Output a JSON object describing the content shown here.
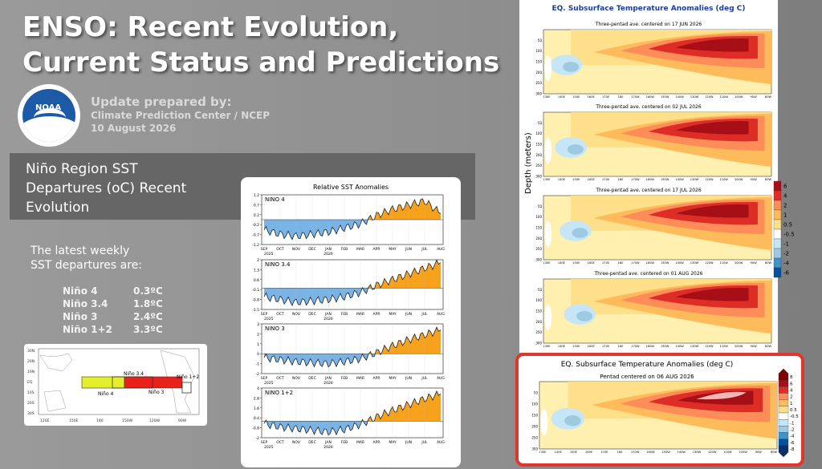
{
  "title": {
    "line1": "ENSO: Recent Evolution,",
    "line2": "Current Status and Predictions"
  },
  "update": {
    "label": "Update prepared by:",
    "org": "Climate Prediction Center / NCEP",
    "date": "10 August 2026"
  },
  "logo": {
    "text": "NOAA"
  },
  "section": {
    "line1": "Niño Region SST",
    "line2": "Departures (oC) Recent",
    "line3": "Evolution"
  },
  "latest": {
    "heading1": "The latest weekly",
    "heading2": "SST departures are:",
    "rows": [
      {
        "name": "Niño 4",
        "value": "0.3ºC"
      },
      {
        "name": "Niño 3.4",
        "value": "1.8ºC"
      },
      {
        "name": "Niño 3",
        "value": "2.4ºC"
      },
      {
        "name": "Niño 1+2",
        "value": "3.3ºC"
      }
    ]
  },
  "map": {
    "labels": [
      "Niño 3.4",
      "Niño 4",
      "Niño 3",
      "Niño 1+2"
    ],
    "lat_labels": [
      "30N",
      "20N",
      "10N",
      "EQ",
      "10S",
      "20S",
      "30S"
    ],
    "lon_labels": [
      "120E",
      "150E",
      "180",
      "150W",
      "120W",
      "90W"
    ]
  },
  "sst_chart": {
    "title": "Relative SST Anomalies",
    "months": [
      "SEP",
      "OCT",
      "NOV",
      "DEC",
      "JAN",
      "FEB",
      "MAR",
      "APR",
      "MAY",
      "JUN",
      "JUL",
      "AUG"
    ],
    "year1": "2025",
    "year2": "2026"
  },
  "chart_data": [
    {
      "type": "area",
      "title": "NINO 4",
      "ylim": [
        -1.2,
        1.2
      ],
      "x": [
        "SEP",
        "OCT",
        "NOV",
        "DEC",
        "JAN",
        "FEB",
        "MAR",
        "APR",
        "MAY",
        "JUN",
        "JUL",
        "AUG"
      ],
      "y": [
        -0.5,
        -0.7,
        -0.8,
        -0.7,
        -0.6,
        -0.4,
        -0.2,
        0.2,
        0.5,
        0.7,
        0.9,
        0.3
      ]
    },
    {
      "type": "area",
      "title": "NINO 3.4",
      "ylim": [
        -1.5,
        2.0
      ],
      "x": [
        "SEP",
        "OCT",
        "NOV",
        "DEC",
        "JAN",
        "FEB",
        "MAR",
        "APR",
        "MAY",
        "JUN",
        "JUL",
        "AUG"
      ],
      "y": [
        -0.6,
        -0.8,
        -1.0,
        -0.9,
        -0.8,
        -0.6,
        -0.3,
        0.2,
        0.6,
        1.0,
        1.4,
        1.8
      ]
    },
    {
      "type": "area",
      "title": "NINO 3",
      "ylim": [
        -2.0,
        3.0
      ],
      "x": [
        "SEP",
        "OCT",
        "NOV",
        "DEC",
        "JAN",
        "FEB",
        "MAR",
        "APR",
        "MAY",
        "JUN",
        "JUL",
        "AUG"
      ],
      "y": [
        -0.4,
        -0.6,
        -0.8,
        -0.9,
        -1.0,
        -0.8,
        -0.5,
        0.1,
        0.8,
        1.4,
        1.9,
        2.4
      ]
    },
    {
      "type": "area",
      "title": "NINO 1+2",
      "ylim": [
        -2.0,
        4.0
      ],
      "x": [
        "SEP",
        "OCT",
        "NOV",
        "DEC",
        "JAN",
        "FEB",
        "MAR",
        "APR",
        "MAY",
        "JUN",
        "JUL",
        "AUG"
      ],
      "y": [
        -0.3,
        -0.7,
        -0.9,
        -1.1,
        -1.3,
        -1.0,
        -0.4,
        0.5,
        1.3,
        2.0,
        2.7,
        3.3
      ]
    }
  ],
  "subsurface": {
    "title": "EQ. Subsurface Temperature Anomalies (deg C)",
    "panels": [
      "Three-pentad ave. centered on 17 JUN 2026",
      "Three-pentad ave. centered on 02 JUL 2026",
      "Three-pentad ave. centered on 17 JUL 2026",
      "Three-pentad ave. centered on 01 AUG 2026"
    ],
    "depth_label": "Depth (meters)",
    "depth_ticks": [
      "50",
      "100",
      "150",
      "200",
      "250",
      "300"
    ],
    "lon_ticks": [
      "130E",
      "140E",
      "150E",
      "160E",
      "170E",
      "180",
      "170W",
      "160W",
      "150W",
      "140W",
      "130W",
      "120W",
      "110W",
      "100W",
      "90W",
      "80W"
    ],
    "legend": [
      "6",
      "4",
      "2",
      "1",
      "0.5",
      "-0.5",
      "-1",
      "-2",
      "-4",
      "-6"
    ],
    "colors": [
      "#a50f15",
      "#de2d26",
      "#fc8d59",
      "#fdbb5c",
      "#ffe08a",
      "#ffffff",
      "#c6e6f7",
      "#9ecae1",
      "#4292c6",
      "#08519c"
    ]
  },
  "latest_panel": {
    "title": "EQ. Subsurface Temperature Anomalies (deg C)",
    "subtitle": "Pentad centered on 06 AUG 2026",
    "legend": [
      "8",
      "6",
      "4",
      "2",
      "1",
      "0.5",
      "-0.5",
      "-1",
      "-2",
      "-4",
      "-6",
      "-8"
    ],
    "highlight": "#e0362c"
  }
}
